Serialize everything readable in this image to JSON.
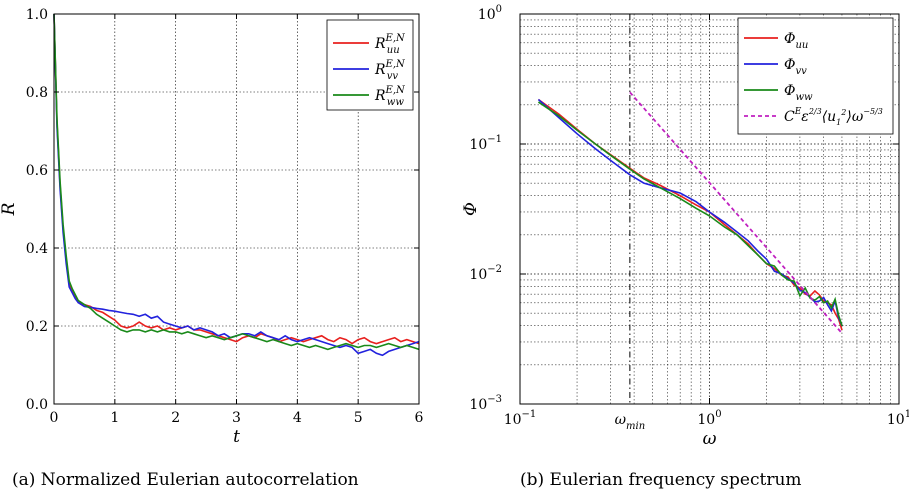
{
  "chart_data": [
    {
      "type": "line",
      "caption": "(a) Normalized Eulerian autocorrelation",
      "xlabel": "t",
      "ylabel": "R",
      "xlim": [
        0,
        6
      ],
      "ylim": [
        0,
        1.0
      ],
      "xticks": [
        "0",
        "1",
        "2",
        "3",
        "4",
        "5",
        "6"
      ],
      "yticks": [
        "0.0",
        "0.2",
        "0.4",
        "0.6",
        "0.8",
        "1.0"
      ],
      "grid": true,
      "legend_position": "top-right",
      "series": [
        {
          "name": "R_uu^{E,N}",
          "legend_base": "R",
          "legend_sup": "E,N",
          "legend_sub": "uu",
          "color": "#e8201e",
          "x": [
            0,
            0.05,
            0.1,
            0.15,
            0.2,
            0.25,
            0.3,
            0.35,
            0.4,
            0.5,
            0.6,
            0.7,
            0.8,
            0.9,
            1.0,
            1.1,
            1.2,
            1.3,
            1.4,
            1.5,
            1.6,
            1.7,
            1.8,
            1.9,
            2.0,
            2.1,
            2.2,
            2.3,
            2.4,
            2.5,
            2.6,
            2.7,
            2.8,
            2.9,
            3.0,
            3.1,
            3.2,
            3.3,
            3.4,
            3.5,
            3.6,
            3.7,
            3.8,
            3.9,
            4.0,
            4.1,
            4.2,
            4.3,
            4.4,
            4.5,
            4.6,
            4.7,
            4.8,
            4.9,
            5.0,
            5.1,
            5.2,
            5.3,
            5.4,
            5.5,
            5.6,
            5.7,
            5.8,
            5.9,
            6.0
          ],
          "y": [
            1.0,
            0.72,
            0.56,
            0.45,
            0.37,
            0.31,
            0.29,
            0.275,
            0.26,
            0.255,
            0.25,
            0.24,
            0.235,
            0.225,
            0.215,
            0.2,
            0.195,
            0.2,
            0.21,
            0.2,
            0.195,
            0.2,
            0.19,
            0.195,
            0.19,
            0.195,
            0.2,
            0.19,
            0.19,
            0.185,
            0.18,
            0.175,
            0.17,
            0.165,
            0.16,
            0.17,
            0.175,
            0.17,
            0.18,
            0.175,
            0.17,
            0.16,
            0.165,
            0.17,
            0.165,
            0.16,
            0.165,
            0.17,
            0.175,
            0.165,
            0.16,
            0.17,
            0.165,
            0.155,
            0.165,
            0.17,
            0.16,
            0.155,
            0.16,
            0.165,
            0.17,
            0.16,
            0.165,
            0.16,
            0.155
          ]
        },
        {
          "name": "R_vv^{E,N}",
          "legend_base": "R",
          "legend_sup": "E,N",
          "legend_sub": "vv",
          "color": "#2222dd",
          "x": [
            0,
            0.05,
            0.1,
            0.15,
            0.2,
            0.25,
            0.3,
            0.35,
            0.4,
            0.5,
            0.6,
            0.7,
            0.8,
            0.9,
            1.0,
            1.1,
            1.2,
            1.3,
            1.4,
            1.5,
            1.6,
            1.7,
            1.8,
            1.9,
            2.0,
            2.1,
            2.2,
            2.3,
            2.4,
            2.5,
            2.6,
            2.7,
            2.8,
            2.9,
            3.0,
            3.1,
            3.2,
            3.3,
            3.4,
            3.5,
            3.6,
            3.7,
            3.8,
            3.9,
            4.0,
            4.1,
            4.2,
            4.3,
            4.4,
            4.5,
            4.6,
            4.7,
            4.8,
            4.9,
            5.0,
            5.1,
            5.2,
            5.3,
            5.4,
            5.5,
            5.6,
            5.7,
            5.8,
            5.9,
            6.0
          ],
          "y": [
            1.0,
            0.71,
            0.55,
            0.44,
            0.36,
            0.3,
            0.285,
            0.27,
            0.26,
            0.25,
            0.248,
            0.245,
            0.243,
            0.24,
            0.238,
            0.235,
            0.232,
            0.23,
            0.225,
            0.23,
            0.22,
            0.225,
            0.21,
            0.205,
            0.2,
            0.195,
            0.2,
            0.19,
            0.195,
            0.19,
            0.185,
            0.175,
            0.18,
            0.17,
            0.175,
            0.18,
            0.18,
            0.175,
            0.185,
            0.175,
            0.17,
            0.165,
            0.175,
            0.165,
            0.16,
            0.165,
            0.17,
            0.165,
            0.16,
            0.155,
            0.15,
            0.145,
            0.15,
            0.145,
            0.13,
            0.135,
            0.14,
            0.13,
            0.125,
            0.135,
            0.14,
            0.145,
            0.15,
            0.155,
            0.16
          ]
        },
        {
          "name": "R_ww^{E,N}",
          "legend_base": "R",
          "legend_sup": "E,N",
          "legend_sub": "ww",
          "color": "#1a8a1a",
          "x": [
            0,
            0.05,
            0.1,
            0.15,
            0.2,
            0.25,
            0.3,
            0.35,
            0.4,
            0.5,
            0.6,
            0.7,
            0.8,
            0.9,
            1.0,
            1.1,
            1.2,
            1.3,
            1.4,
            1.5,
            1.6,
            1.7,
            1.8,
            1.9,
            2.0,
            2.1,
            2.2,
            2.3,
            2.4,
            2.5,
            2.6,
            2.7,
            2.8,
            2.9,
            3.0,
            3.1,
            3.2,
            3.3,
            3.4,
            3.5,
            3.6,
            3.7,
            3.8,
            3.9,
            4.0,
            4.1,
            4.2,
            4.3,
            4.4,
            4.5,
            4.6,
            4.7,
            4.8,
            4.9,
            5.0,
            5.1,
            5.2,
            5.3,
            5.4,
            5.5,
            5.6,
            5.7,
            5.8,
            5.9,
            6.0
          ],
          "y": [
            1.0,
            0.73,
            0.57,
            0.46,
            0.38,
            0.315,
            0.295,
            0.28,
            0.265,
            0.255,
            0.245,
            0.23,
            0.22,
            0.21,
            0.2,
            0.19,
            0.185,
            0.19,
            0.19,
            0.185,
            0.19,
            0.185,
            0.19,
            0.185,
            0.185,
            0.18,
            0.185,
            0.18,
            0.175,
            0.17,
            0.175,
            0.17,
            0.165,
            0.17,
            0.175,
            0.18,
            0.175,
            0.17,
            0.165,
            0.16,
            0.165,
            0.16,
            0.155,
            0.15,
            0.155,
            0.15,
            0.145,
            0.15,
            0.145,
            0.14,
            0.145,
            0.15,
            0.155,
            0.15,
            0.145,
            0.15,
            0.15,
            0.145,
            0.15,
            0.155,
            0.15,
            0.145,
            0.15,
            0.145,
            0.14
          ]
        }
      ]
    },
    {
      "type": "line",
      "caption": "(b) Eulerian frequency spectrum",
      "xlabel": "ω",
      "ylabel": "Φ",
      "xscale": "log",
      "yscale": "log",
      "xlim": [
        0.1,
        10
      ],
      "ylim": [
        0.001,
        1
      ],
      "xtick_base": [
        "10",
        "10",
        "10"
      ],
      "xtick_exp": [
        "−1",
        "0",
        "1"
      ],
      "ytick_base": [
        "10",
        "10",
        "10",
        "10"
      ],
      "ytick_exp": [
        "−3",
        "−2",
        "−1",
        "0"
      ],
      "grid": true,
      "legend_position": "top-right",
      "vline": {
        "x": 0.38,
        "label": "ω",
        "label_sub": "min"
      },
      "series": [
        {
          "name": "Φ_uu",
          "legend_base": "Φ",
          "legend_sub": "uu",
          "color": "#e8201e",
          "x": [
            0.125,
            0.16,
            0.2,
            0.25,
            0.3,
            0.38,
            0.45,
            0.55,
            0.7,
            0.85,
            1.0,
            1.2,
            1.4,
            1.6,
            1.8,
            2.0,
            2.2,
            2.4,
            2.6,
            2.8,
            3.0,
            3.2,
            3.4,
            3.6,
            3.8,
            4.0,
            4.2,
            4.4,
            4.6,
            4.8,
            5.0
          ],
          "y": [
            0.22,
            0.17,
            0.13,
            0.1,
            0.083,
            0.065,
            0.055,
            0.048,
            0.04,
            0.034,
            0.03,
            0.024,
            0.02,
            0.017,
            0.014,
            0.012,
            0.011,
            0.0098,
            0.0095,
            0.0082,
            0.0078,
            0.007,
            0.0068,
            0.0074,
            0.0069,
            0.0062,
            0.006,
            0.0058,
            0.005,
            0.0045,
            0.0037
          ]
        },
        {
          "name": "Φ_vv",
          "legend_base": "Φ",
          "legend_sub": "vv",
          "color": "#2222dd",
          "x": [
            0.125,
            0.16,
            0.2,
            0.25,
            0.3,
            0.38,
            0.45,
            0.55,
            0.7,
            0.85,
            1.0,
            1.2,
            1.4,
            1.6,
            1.8,
            2.0,
            2.2,
            2.4,
            2.6,
            2.8,
            3.0,
            3.2,
            3.4,
            3.6,
            3.8,
            4.0,
            4.2,
            4.4,
            4.6,
            4.8,
            5.0
          ],
          "y": [
            0.22,
            0.16,
            0.12,
            0.092,
            0.075,
            0.058,
            0.05,
            0.046,
            0.042,
            0.036,
            0.03,
            0.025,
            0.021,
            0.018,
            0.015,
            0.013,
            0.0105,
            0.01,
            0.0092,
            0.0085,
            0.0075,
            0.0072,
            0.0066,
            0.0061,
            0.0062,
            0.0066,
            0.0058,
            0.0052,
            0.0062,
            0.0046,
            0.004
          ]
        },
        {
          "name": "Φ_ww",
          "legend_base": "Φ",
          "legend_sub": "ww",
          "color": "#1a8a1a",
          "x": [
            0.125,
            0.16,
            0.2,
            0.25,
            0.3,
            0.38,
            0.45,
            0.55,
            0.7,
            0.85,
            1.0,
            1.2,
            1.4,
            1.6,
            1.8,
            2.0,
            2.2,
            2.4,
            2.6,
            2.8,
            3.0,
            3.2,
            3.4,
            3.6,
            3.8,
            4.0,
            4.2,
            4.4,
            4.6,
            4.8,
            5.0
          ],
          "y": [
            0.21,
            0.165,
            0.128,
            0.1,
            0.082,
            0.064,
            0.054,
            0.046,
            0.038,
            0.032,
            0.028,
            0.023,
            0.02,
            0.0165,
            0.014,
            0.012,
            0.0115,
            0.0098,
            0.009,
            0.0088,
            0.0068,
            0.0078,
            0.0065,
            0.0063,
            0.0067,
            0.006,
            0.0062,
            0.0055,
            0.0064,
            0.0048,
            0.004
          ]
        },
        {
          "name": "C^E ε^{2/3}⟨u_1^2⟩ω^{−5/3}",
          "legend_base": "C",
          "color": "#c020c0",
          "dashed": true,
          "x": [
            0.38,
            5.0
          ],
          "y": [
            0.25,
            0.0035
          ]
        }
      ]
    }
  ]
}
